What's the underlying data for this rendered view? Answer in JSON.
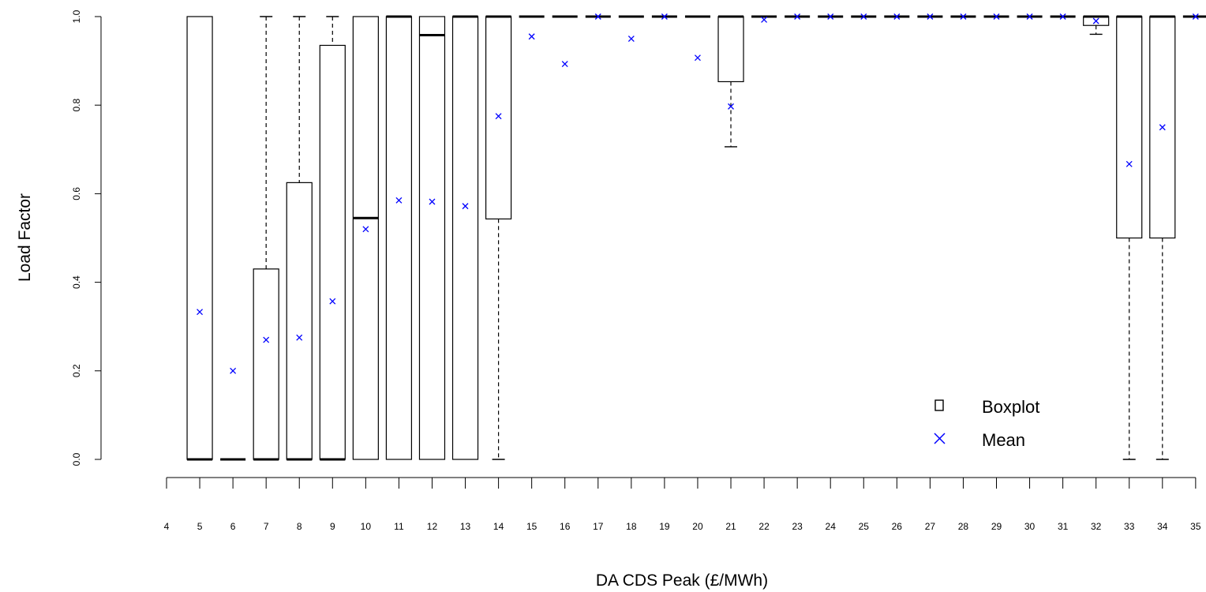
{
  "chart_data": {
    "type": "boxplot",
    "xlabel": "DA CDS Peak (£/MWh)",
    "ylabel": "Load Factor",
    "xlim": [
      4,
      35
    ],
    "ylim": [
      0,
      1
    ],
    "x_ticks": [
      "4",
      "5",
      "6",
      "7",
      "8",
      "9",
      "10",
      "11",
      "12",
      "13",
      "14",
      "15",
      "16",
      "17",
      "18",
      "19",
      "20",
      "21",
      "22",
      "23",
      "24",
      "25",
      "26",
      "27",
      "28",
      "29",
      "30",
      "31",
      "32",
      "33",
      "34",
      "35"
    ],
    "y_ticks": [
      "0.0",
      "0.2",
      "0.4",
      "0.6",
      "0.8",
      "1.0"
    ],
    "legend": {
      "placement": "bottom-right",
      "entries": [
        {
          "name": "Boxplot",
          "symbol": "square",
          "color": "#000000"
        },
        {
          "name": "Mean",
          "symbol": "x",
          "color": "#0000ff"
        }
      ]
    },
    "colors": {
      "box": "#000000",
      "mean": "#0000ff"
    },
    "boxes": [
      {
        "x": 5,
        "min": 0,
        "q1": 0,
        "median": 0,
        "q3": 1,
        "max": 1,
        "mean": 0.333
      },
      {
        "x": 6,
        "min": 0,
        "q1": 0,
        "median": 0,
        "q3": 0,
        "max": 0,
        "mean": 0.2
      },
      {
        "x": 7,
        "min": 0,
        "q1": 0,
        "median": 0,
        "q3": 0.43,
        "max": 1,
        "mean": 0.27
      },
      {
        "x": 8,
        "min": 0,
        "q1": 0,
        "median": 0,
        "q3": 0.625,
        "max": 1,
        "mean": 0.275
      },
      {
        "x": 9,
        "min": 0,
        "q1": 0,
        "median": 0,
        "q3": 0.935,
        "max": 1,
        "mean": 0.357
      },
      {
        "x": 10,
        "min": 0,
        "q1": 0,
        "median": 0.545,
        "q3": 1,
        "max": 1,
        "mean": 0.52
      },
      {
        "x": 11,
        "min": 0,
        "q1": 0,
        "median": 1,
        "q3": 1,
        "max": 1,
        "mean": 0.585
      },
      {
        "x": 12,
        "min": 0,
        "q1": 0,
        "median": 0.958,
        "q3": 1,
        "max": 1,
        "mean": 0.582
      },
      {
        "x": 13,
        "min": 0,
        "q1": 0,
        "median": 1,
        "q3": 1,
        "max": 1,
        "mean": 0.572
      },
      {
        "x": 14,
        "min": 0,
        "q1": 0.543,
        "median": 1,
        "q3": 1,
        "max": 1,
        "mean": 0.775
      },
      {
        "x": 15,
        "min": 1,
        "q1": 1,
        "median": 1,
        "q3": 1,
        "max": 1,
        "mean": 0.955
      },
      {
        "x": 16,
        "min": 1,
        "q1": 1,
        "median": 1,
        "q3": 1,
        "max": 1,
        "mean": 0.893
      },
      {
        "x": 17,
        "min": 1,
        "q1": 1,
        "median": 1,
        "q3": 1,
        "max": 1,
        "mean": 1.0
      },
      {
        "x": 18,
        "min": 1,
        "q1": 1,
        "median": 1,
        "q3": 1,
        "max": 1,
        "mean": 0.95
      },
      {
        "x": 19,
        "min": 1,
        "q1": 1,
        "median": 1,
        "q3": 1,
        "max": 1,
        "mean": 1.0
      },
      {
        "x": 20,
        "min": 1,
        "q1": 1,
        "median": 1,
        "q3": 1,
        "max": 1,
        "mean": 0.907
      },
      {
        "x": 21,
        "min": 0.706,
        "q1": 0.853,
        "median": 1,
        "q3": 1,
        "max": 1,
        "mean": 0.797
      },
      {
        "x": 22,
        "min": 1,
        "q1": 1,
        "median": 1,
        "q3": 1,
        "max": 1,
        "mean": 0.993
      },
      {
        "x": 23,
        "min": 1,
        "q1": 1,
        "median": 1,
        "q3": 1,
        "max": 1,
        "mean": 1.0
      },
      {
        "x": 24,
        "min": 1,
        "q1": 1,
        "median": 1,
        "q3": 1,
        "max": 1,
        "mean": 1.0
      },
      {
        "x": 25,
        "min": 1,
        "q1": 1,
        "median": 1,
        "q3": 1,
        "max": 1,
        "mean": 1.0
      },
      {
        "x": 26,
        "min": 1,
        "q1": 1,
        "median": 1,
        "q3": 1,
        "max": 1,
        "mean": 1.0
      },
      {
        "x": 27,
        "min": 1,
        "q1": 1,
        "median": 1,
        "q3": 1,
        "max": 1,
        "mean": 1.0
      },
      {
        "x": 28,
        "min": 1,
        "q1": 1,
        "median": 1,
        "q3": 1,
        "max": 1,
        "mean": 1.0
      },
      {
        "x": 29,
        "min": 1,
        "q1": 1,
        "median": 1,
        "q3": 1,
        "max": 1,
        "mean": 1.0
      },
      {
        "x": 30,
        "min": 1,
        "q1": 1,
        "median": 1,
        "q3": 1,
        "max": 1,
        "mean": 1.0
      },
      {
        "x": 31,
        "min": 1,
        "q1": 1,
        "median": 1,
        "q3": 1,
        "max": 1,
        "mean": 1.0
      },
      {
        "x": 32,
        "min": 0.96,
        "q1": 0.98,
        "median": 1,
        "q3": 1,
        "max": 1,
        "mean": 0.99
      },
      {
        "x": 33,
        "min": 0,
        "q1": 0.5,
        "median": 1,
        "q3": 1,
        "max": 1,
        "mean": 0.667
      },
      {
        "x": 34,
        "min": 0,
        "q1": 0.5,
        "median": 1,
        "q3": 1,
        "max": 1,
        "mean": 0.75
      },
      {
        "x": 35,
        "min": 1,
        "q1": 1,
        "median": 1,
        "q3": 1,
        "max": 1,
        "mean": 1.0
      }
    ]
  }
}
